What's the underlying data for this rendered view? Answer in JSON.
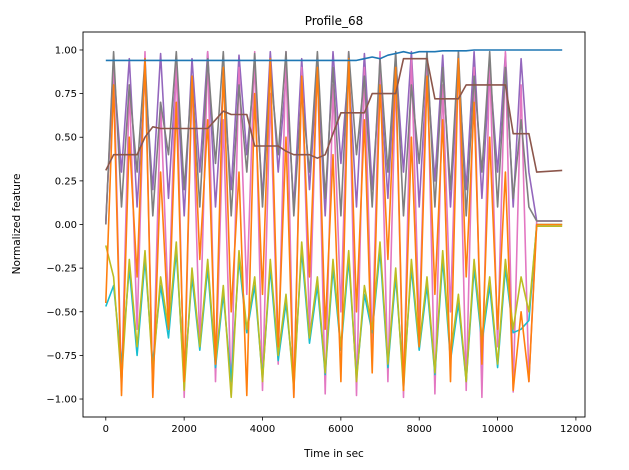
{
  "chart_data": {
    "type": "line",
    "title": "Profile_68",
    "xlabel": "Time in sec",
    "ylabel": "Normalized feature",
    "xlim": [
      -582,
      12232
    ],
    "ylim": [
      -1.103,
      1.103
    ],
    "xticks": [
      0,
      2000,
      4000,
      6000,
      8000,
      10000,
      12000
    ],
    "yticks": [
      -1.0,
      -0.75,
      -0.5,
      -0.25,
      0.0,
      0.25,
      0.5,
      0.75,
      1.0
    ],
    "ytick_labels": [
      "−1.00",
      "−0.75",
      "−0.50",
      "−0.25",
      "0.00",
      "0.25",
      "0.50",
      "0.75",
      "1.00"
    ],
    "grid": false,
    "legend": "none",
    "x": [
      0,
      200,
      400,
      600,
      800,
      1000,
      1200,
      1400,
      1600,
      1800,
      2000,
      2200,
      2400,
      2600,
      2800,
      3000,
      3200,
      3400,
      3600,
      3800,
      4000,
      4200,
      4400,
      4600,
      4800,
      5000,
      5200,
      5400,
      5600,
      5800,
      6000,
      6200,
      6400,
      6600,
      6800,
      7000,
      7200,
      7400,
      7600,
      7800,
      8000,
      8200,
      8400,
      8600,
      8800,
      9000,
      9200,
      9400,
      9600,
      9800,
      10000,
      10200,
      10400,
      10600,
      10800,
      11000,
      11650
    ],
    "series": [
      {
        "color": "#9467bd",
        "values": [
          0.02,
          0.9,
          0.3,
          0.95,
          0.1,
          0.85,
          0.2,
          0.98,
          0.15,
          0.9,
          0.05,
          0.95,
          0.3,
          0.99,
          0.1,
          0.8,
          0.2,
          0.97,
          0.4,
          0.9,
          0.15,
          0.99,
          0.3,
          0.85,
          0.1,
          0.95,
          0.2,
          0.9,
          0.05,
          0.99,
          0.35,
          0.9,
          0.1,
          0.98,
          0.2,
          0.85,
          0.15,
          0.95,
          0.3,
          0.99,
          0.1,
          0.9,
          0.25,
          0.97,
          0.1,
          0.88,
          0.2,
          0.99,
          0.15,
          0.9,
          0.3,
          0.98,
          0.1,
          0.95,
          0.3,
          0.02,
          0.02
        ]
      },
      {
        "color": "#e377c2",
        "values": [
          0.0,
          0.95,
          -0.95,
          0.8,
          -0.6,
          0.99,
          -0.98,
          0.7,
          -0.5,
          0.95,
          -0.99,
          0.85,
          -0.7,
          0.99,
          -0.9,
          0.6,
          -0.98,
          0.9,
          -0.4,
          0.99,
          -0.95,
          0.75,
          -0.8,
          0.99,
          -0.99,
          0.9,
          -0.6,
          0.95,
          -0.97,
          0.8,
          -0.5,
          0.99,
          -0.98,
          0.9,
          -0.7,
          0.99,
          -0.9,
          0.85,
          -0.99,
          0.95,
          -0.6,
          0.99,
          -0.97,
          0.8,
          -0.5,
          0.99,
          -0.95,
          0.9,
          -0.99,
          0.95,
          -0.7,
          0.99,
          -0.96,
          0.8,
          -0.9,
          0.02,
          0.02
        ]
      },
      {
        "color": "#7f7f7f",
        "values": [
          0.0,
          0.99,
          0.1,
          0.8,
          0.3,
          0.95,
          0.05,
          0.7,
          0.4,
          0.99,
          0.2,
          0.85,
          0.1,
          0.95,
          0.35,
          0.99,
          0.05,
          0.8,
          0.3,
          0.98,
          0.1,
          0.9,
          0.4,
          0.99,
          0.05,
          0.75,
          0.3,
          0.99,
          0.15,
          0.9,
          0.05,
          0.99,
          0.4,
          0.85,
          0.1,
          0.95,
          0.3,
          0.99,
          0.05,
          0.8,
          0.35,
          0.99,
          0.1,
          0.9,
          0.2,
          0.99,
          0.05,
          0.85,
          0.3,
          0.99,
          0.1,
          0.9,
          0.15,
          0.6,
          0.1,
          0.02,
          0.02
        ]
      },
      {
        "color": "#17becf",
        "values": [
          -0.47,
          -0.35,
          -0.8,
          -0.25,
          -0.75,
          -0.2,
          -0.8,
          -0.35,
          -0.65,
          -0.15,
          -0.9,
          -0.3,
          -0.72,
          -0.25,
          -0.82,
          -0.4,
          -0.9,
          -0.2,
          -0.62,
          -0.35,
          -0.88,
          -0.25,
          -0.78,
          -0.45,
          -0.9,
          -0.15,
          -0.68,
          -0.35,
          -0.86,
          -0.25,
          -0.72,
          -0.2,
          -0.88,
          -0.4,
          -0.62,
          -0.15,
          -0.82,
          -0.3,
          -0.9,
          -0.25,
          -0.72,
          -0.35,
          -0.86,
          -0.2,
          -0.78,
          -0.45,
          -0.9,
          -0.25,
          -0.68,
          -0.35,
          -0.82,
          -0.25,
          -0.62,
          -0.6,
          -0.55,
          0.0,
          0.0
        ]
      },
      {
        "color": "#bcbd22",
        "values": [
          -0.12,
          -0.3,
          -0.9,
          -0.2,
          -0.7,
          -0.15,
          -0.85,
          -0.3,
          -0.6,
          -0.1,
          -0.95,
          -0.25,
          -0.7,
          -0.2,
          -0.8,
          -0.35,
          -0.99,
          -0.15,
          -0.6,
          -0.3,
          -0.9,
          -0.2,
          -0.75,
          -0.4,
          -0.95,
          -0.1,
          -0.65,
          -0.3,
          -0.85,
          -0.2,
          -0.7,
          -0.15,
          -0.9,
          -0.35,
          -0.6,
          -0.1,
          -0.8,
          -0.25,
          -0.95,
          -0.2,
          -0.7,
          -0.3,
          -0.85,
          -0.15,
          -0.75,
          -0.4,
          -0.9,
          -0.2,
          -0.65,
          -0.3,
          -0.8,
          -0.2,
          -0.6,
          -0.3,
          -0.5,
          -0.01,
          -0.01
        ]
      },
      {
        "color": "#ff7f0e",
        "values": [
          -0.45,
          0.8,
          -0.98,
          0.5,
          -0.3,
          0.95,
          -0.99,
          0.3,
          -0.6,
          0.7,
          -0.9,
          0.85,
          -0.2,
          0.6,
          -0.8,
          0.9,
          -0.5,
          0.3,
          -0.98,
          0.75,
          -0.4,
          0.95,
          -0.7,
          0.5,
          -0.99,
          0.85,
          -0.3,
          0.9,
          -0.6,
          0.4,
          -0.9,
          0.95,
          -0.5,
          0.6,
          -0.85,
          0.8,
          -0.2,
          0.9,
          -0.95,
          0.5,
          -0.7,
          0.85,
          -0.4,
          0.6,
          -0.9,
          0.95,
          -0.3,
          0.7,
          -0.8,
          0.5,
          -0.6,
          0.3,
          -0.95,
          -0.5,
          -0.9,
          0.0,
          0.0
        ]
      },
      {
        "color": "#8c564b",
        "values": [
          0.31,
          0.4,
          0.4,
          0.4,
          0.4,
          0.5,
          0.56,
          0.55,
          0.55,
          0.55,
          0.55,
          0.55,
          0.55,
          0.55,
          0.6,
          0.65,
          0.63,
          0.63,
          0.63,
          0.45,
          0.45,
          0.45,
          0.45,
          0.42,
          0.4,
          0.4,
          0.4,
          0.38,
          0.4,
          0.52,
          0.64,
          0.64,
          0.64,
          0.64,
          0.75,
          0.75,
          0.75,
          0.75,
          0.95,
          0.95,
          0.95,
          0.95,
          0.72,
          0.72,
          0.72,
          0.72,
          0.8,
          0.8,
          0.8,
          0.8,
          0.8,
          0.8,
          0.52,
          0.52,
          0.52,
          0.3,
          0.31
        ]
      },
      {
        "color": "#1f77b4",
        "values": [
          0.94,
          0.94,
          0.94,
          0.94,
          0.94,
          0.94,
          0.94,
          0.94,
          0.94,
          0.94,
          0.94,
          0.94,
          0.94,
          0.94,
          0.94,
          0.94,
          0.94,
          0.94,
          0.94,
          0.94,
          0.94,
          0.94,
          0.94,
          0.94,
          0.94,
          0.94,
          0.94,
          0.94,
          0.94,
          0.94,
          0.94,
          0.94,
          0.94,
          0.95,
          0.96,
          0.95,
          0.97,
          0.98,
          0.99,
          0.98,
          0.99,
          0.99,
          0.99,
          0.995,
          0.995,
          0.995,
          0.995,
          1.0,
          1.0,
          1.0,
          1.0,
          1.0,
          1.0,
          1.0,
          1.0,
          1.0,
          1.0
        ]
      }
    ]
  }
}
